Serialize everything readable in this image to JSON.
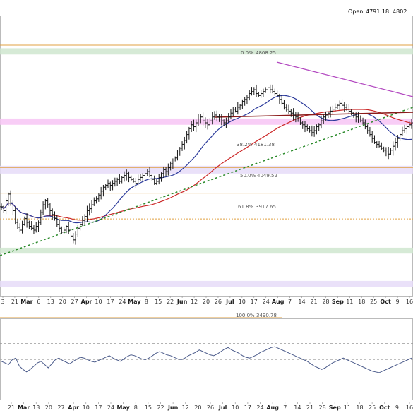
{
  "header": {
    "open_label": "Open",
    "open_value": "4791.18",
    "next_value": "4802"
  },
  "chart_data": {
    "type": "ohlc",
    "colors": {
      "price_bars": "#1a1a1a",
      "ma_blue": "#2b3a9b",
      "ma_red": "#cc2a2a",
      "trend_green": "#2a8a2a",
      "downtrend_magenta": "#b247c0",
      "support_darkred": "#8b1a1a",
      "fib_orange": "#e0a040",
      "zone_pink": "#f7c4f4",
      "zone_green": "#cfe6cf",
      "zone_lavender": "#e6dcf8",
      "rsi_line": "#4a5a8a"
    },
    "fib_levels": [
      {
        "label": "0.0%",
        "value": "4808.25"
      },
      {
        "label": "38.2%",
        "value": "4181.38"
      },
      {
        "label": "50.0%",
        "value": "4049.52"
      },
      {
        "label": "61.8%",
        "value": "3917.65"
      },
      {
        "label": "100.0%",
        "value": "3490.78"
      }
    ],
    "x_axis_top": [
      {
        "label": "3",
        "bold": false
      },
      {
        "label": "21",
        "bold": false
      },
      {
        "label": "Mar",
        "bold": true
      },
      {
        "label": "6",
        "bold": false
      },
      {
        "label": "13",
        "bold": false
      },
      {
        "label": "20",
        "bold": false
      },
      {
        "label": "27",
        "bold": false
      },
      {
        "label": "Apr",
        "bold": true
      },
      {
        "label": "10",
        "bold": false
      },
      {
        "label": "17",
        "bold": false
      },
      {
        "label": "24",
        "bold": false
      },
      {
        "label": "May",
        "bold": true
      },
      {
        "label": "8",
        "bold": false
      },
      {
        "label": "15",
        "bold": false
      },
      {
        "label": "22",
        "bold": false
      },
      {
        "label": "Jun",
        "bold": true
      },
      {
        "label": "12",
        "bold": false
      },
      {
        "label": "20",
        "bold": false
      },
      {
        "label": "26",
        "bold": false
      },
      {
        "label": "Jul",
        "bold": true
      },
      {
        "label": "10",
        "bold": false
      },
      {
        "label": "17",
        "bold": false
      },
      {
        "label": "24",
        "bold": false
      },
      {
        "label": "Aug",
        "bold": true
      },
      {
        "label": "7",
        "bold": false
      },
      {
        "label": "14",
        "bold": false
      },
      {
        "label": "21",
        "bold": false
      },
      {
        "label": "28",
        "bold": false
      },
      {
        "label": "Sep",
        "bold": true
      },
      {
        "label": "11",
        "bold": false
      },
      {
        "label": "18",
        "bold": false
      },
      {
        "label": "25",
        "bold": false
      },
      {
        "label": "Oct",
        "bold": true
      },
      {
        "label": "9",
        "bold": false
      },
      {
        "label": "16",
        "bold": false
      }
    ],
    "x_axis_bottom": [
      {
        "label": "21",
        "bold": false
      },
      {
        "label": "Mar",
        "bold": true
      },
      {
        "label": "13",
        "bold": false
      },
      {
        "label": "20",
        "bold": false
      },
      {
        "label": "27",
        "bold": false
      },
      {
        "label": "Apr",
        "bold": true
      },
      {
        "label": "10",
        "bold": false
      },
      {
        "label": "17",
        "bold": false
      },
      {
        "label": "24",
        "bold": false
      },
      {
        "label": "May",
        "bold": true
      },
      {
        "label": "8",
        "bold": false
      },
      {
        "label": "15",
        "bold": false
      },
      {
        "label": "22",
        "bold": false
      },
      {
        "label": "Jun",
        "bold": true
      },
      {
        "label": "12",
        "bold": false
      },
      {
        "label": "20",
        "bold": false
      },
      {
        "label": "26",
        "bold": false
      },
      {
        "label": "Jul",
        "bold": true
      },
      {
        "label": "10",
        "bold": false
      },
      {
        "label": "17",
        "bold": false
      },
      {
        "label": "24",
        "bold": false
      },
      {
        "label": "Aug",
        "bold": true
      },
      {
        "label": "7",
        "bold": false
      },
      {
        "label": "14",
        "bold": false
      },
      {
        "label": "21",
        "bold": false
      },
      {
        "label": "28",
        "bold": false
      },
      {
        "label": "Sep",
        "bold": true
      },
      {
        "label": "11",
        "bold": false
      },
      {
        "label": "18",
        "bold": false
      },
      {
        "label": "25",
        "bold": false
      },
      {
        "label": "Oct",
        "bold": true
      },
      {
        "label": "9",
        "bold": false
      },
      {
        "label": "16",
        "bold": false
      }
    ],
    "price_series_approx": [
      3980,
      3960,
      4010,
      4045,
      4000,
      3960,
      3900,
      3875,
      3860,
      3890,
      3920,
      3900,
      3880,
      3870,
      3860,
      3880,
      3900,
      3950,
      3990,
      4010,
      3990,
      3960,
      3940,
      3920,
      3890,
      3870,
      3850,
      3860,
      3880,
      3860,
      3830,
      3810,
      3840,
      3870,
      3890,
      3910,
      3930,
      3960,
      3970,
      3990,
      4010,
      4020,
      4040,
      4060,
      4080,
      4090,
      4100,
      4090,
      4100,
      4110,
      4120,
      4110,
      4130,
      4140,
      4150,
      4130,
      4120,
      4110,
      4100,
      4120,
      4130,
      4140,
      4150,
      4160,
      4140,
      4120,
      4100,
      4110,
      4130,
      4150,
      4170,
      4160,
      4180,
      4200,
      4220,
      4230,
      4260,
      4280,
      4300,
      4320,
      4350,
      4380,
      4400,
      4390,
      4410,
      4430,
      4440,
      4420,
      4410,
      4400,
      4420,
      4440,
      4450,
      4440,
      4430,
      4420,
      4410,
      4420,
      4440,
      4460,
      4480,
      4470,
      4490,
      4500,
      4520,
      4530,
      4540,
      4560,
      4570,
      4580,
      4560,
      4550,
      4560,
      4570,
      4580,
      4590,
      4580,
      4570,
      4560,
      4550,
      4530,
      4510,
      4490,
      4480,
      4470,
      4460,
      4450,
      4440,
      4430,
      4410,
      4400,
      4390,
      4380,
      4370,
      4360,
      4370,
      4390,
      4400,
      4420,
      4440,
      4450,
      4460,
      4470,
      4480,
      4490,
      4500,
      4510,
      4500,
      4490,
      4480,
      4470,
      4460,
      4450,
      4440,
      4430,
      4420,
      4410,
      4390,
      4370,
      4350,
      4330,
      4310,
      4300,
      4290,
      4280,
      4270,
      4260,
      4250,
      4270,
      4290,
      4310,
      4330,
      4350,
      4370,
      4380,
      4390,
      4400,
      4410
    ],
    "rsi_series_approx": [
      48,
      46,
      44,
      50,
      52,
      42,
      38,
      35,
      38,
      42,
      46,
      48,
      44,
      40,
      45,
      50,
      52,
      49,
      47,
      45,
      48,
      51,
      53,
      52,
      50,
      48,
      47,
      49,
      51,
      53,
      55,
      52,
      50,
      48,
      51,
      54,
      56,
      55,
      53,
      51,
      50,
      52,
      55,
      58,
      60,
      58,
      56,
      55,
      53,
      51,
      50,
      52,
      55,
      57,
      59,
      62,
      60,
      58,
      56,
      55,
      57,
      60,
      63,
      65,
      62,
      60,
      58,
      55,
      53,
      52,
      54,
      56,
      59,
      61,
      63,
      65,
      66,
      64,
      62,
      60,
      58,
      56,
      54,
      52,
      50,
      48,
      45,
      42,
      40,
      38,
      40,
      43,
      46,
      48,
      50,
      52,
      50,
      48,
      46,
      44,
      42,
      40,
      38,
      36,
      35,
      34,
      36,
      38,
      40,
      42,
      44,
      46,
      48,
      50,
      52
    ]
  }
}
